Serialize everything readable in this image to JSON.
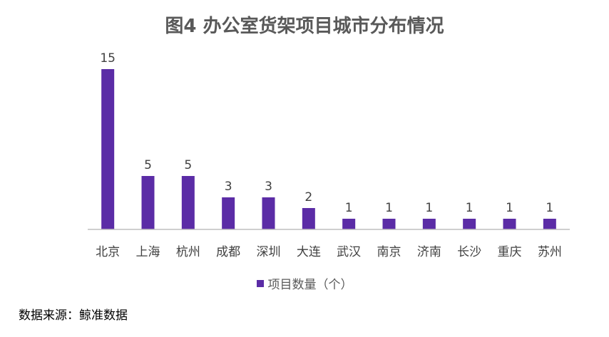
{
  "chart_data": {
    "type": "bar",
    "title": "图4 办公室货架项目城市分布情况",
    "categories": [
      "北京",
      "上海",
      "杭州",
      "成都",
      "深圳",
      "大连",
      "武汉",
      "南京",
      "济南",
      "长沙",
      "重庆",
      "苏州"
    ],
    "series": [
      {
        "name": "项目数量（个）",
        "values": [
          15,
          5,
          5,
          3,
          3,
          2,
          1,
          1,
          1,
          1,
          1,
          1
        ]
      }
    ],
    "xlabel": "",
    "ylabel": "",
    "ylim": [
      0,
      15
    ],
    "grid": false,
    "legend_position": "bottom",
    "bar_color": "#5b2ca6",
    "data_labels": true
  },
  "source_note": "数据来源：鲸准数据"
}
